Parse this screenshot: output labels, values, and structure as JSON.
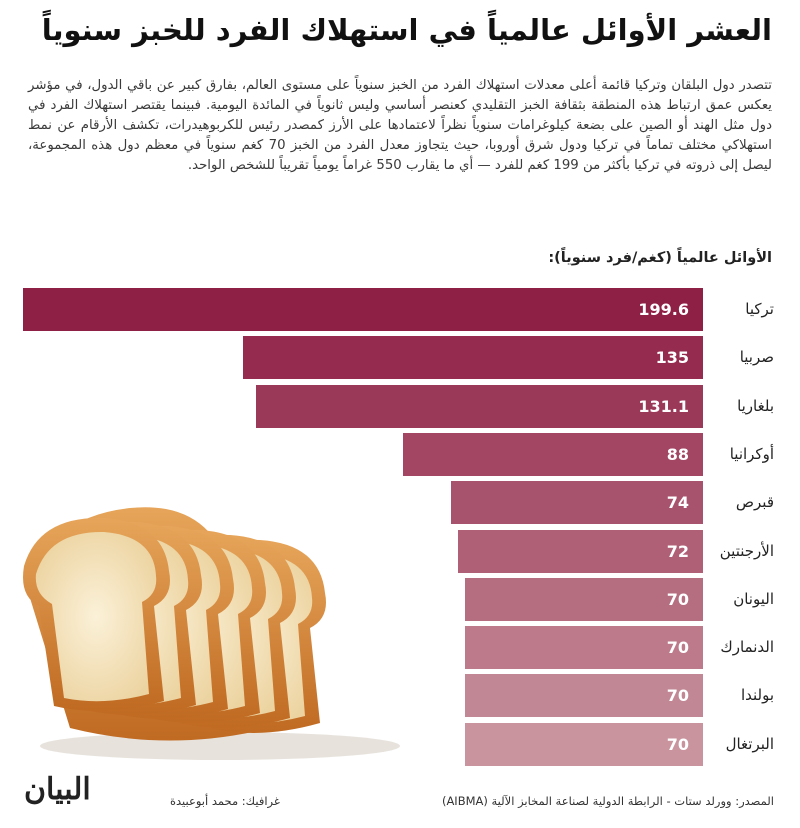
{
  "header": {
    "title": "العشر الأوائل عالمياً في استهلاك الفرد للخبز سنوياً",
    "body": "تتصدر دول البلقان وتركيا قائمة أعلى معدلات استهلاك الفرد من الخبز سنوياً على مستوى العالم، بفارق كبير عن باقي الدول، في مؤشر يعكس عمق ارتباط هذه المنطقة بثقافة الخبز التقليدي كعنصر أساسي وليس ثانوياً في المائدة اليومية. فبينما يقتصر استهلاك الفرد في دول مثل الهند أو الصين على بضعة كيلوغرامات سنوياً نظراً لاعتمادها على الأرز كمصدر رئيس للكربوهيدرات، تكشف الأرقام عن نمط استهلاكي مختلف تماماً في تركيا ودول شرق أوروبا، حيث يتجاوز معدل الفرد من الخبز 70 كغم سنوياً في معظم دول هذه المجموعة، ليصل إلى ذروته في تركيا بأكثر من 199 كغم للفرد — أي ما يقارب 550 غراماً يومياً تقريباً للشخص الواحد.",
    "subtitle": "الأوائل عالمياً (كغم/فرد سنوياً):"
  },
  "footer": {
    "source": "المصدر: وورلد ستات - الرابطة الدولية لصناعة المخابز الآلية (AIBMA)",
    "credit": "غرافيك: محمد أبوعبيدة",
    "logo": "البيان"
  },
  "colors": {
    "bar_darkest": "#8e1f45",
    "bar_lightest": "#c9949e",
    "text": "#1e1e1e"
  },
  "chart_data": {
    "type": "bar",
    "orientation": "horizontal",
    "direction": "rtl",
    "categories": [
      "تركيا",
      "صربيا",
      "بلغاريا",
      "أوكرانيا",
      "قبرص",
      "الأرجنتين",
      "اليونان",
      "الدنمارك",
      "بولندا",
      "البرتغال"
    ],
    "values": [
      199.6,
      135,
      131.1,
      88,
      74,
      72,
      70,
      70,
      70,
      70
    ],
    "value_labels": [
      "199.6",
      "135",
      "131.1",
      "88",
      "74",
      "72",
      "70",
      "70",
      "70",
      "70"
    ],
    "title": "الأوائل عالمياً (كغم/فرد سنوياً):",
    "xlim": [
      0,
      199.6
    ],
    "grid": false,
    "legend": "none"
  }
}
